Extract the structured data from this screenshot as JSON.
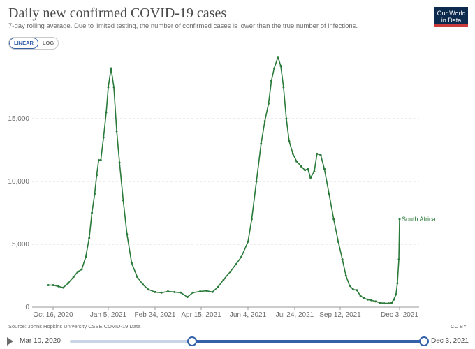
{
  "header": {
    "title": "Daily new confirmed COVID-19 cases",
    "subtitle": "7-day rolling average. Due to limited testing, the number of confirmed cases is lower than the true number of infections.",
    "logo_line1": "Our World",
    "logo_line2": "in Data"
  },
  "toggle": {
    "linear": "LINEAR",
    "log": "LOG",
    "selected": "LINEAR"
  },
  "footer": {
    "source": "Source: Johns Hopkins University CSSE COVID-19 Data",
    "license": "CC BY"
  },
  "timeline": {
    "start_label": "Mar 10, 2020",
    "end_label": "Dec 3, 2021"
  },
  "colors": {
    "series": "#2a7a3a",
    "accent": "#3360a9",
    "grid": "#d9d9d9"
  },
  "chart_data": {
    "type": "line",
    "title": "Daily new confirmed COVID-19 cases",
    "ylim": [
      0,
      20000
    ],
    "yticks": [
      0,
      5000,
      10000,
      15000
    ],
    "ytick_labels": [
      "0",
      "5,000",
      "10,000",
      "15,000"
    ],
    "xlim_days": [
      0,
      422
    ],
    "xticks_days": [
      0,
      81,
      131,
      181,
      231,
      281,
      330,
      412
    ],
    "xtick_labels": [
      "Oct 16, 2020",
      "Jan 5, 2021",
      "Feb 24, 2021",
      "Apr 15, 2021",
      "Jun 4, 2021",
      "Jul 24, 2021",
      "Sep 12, 2021",
      "Dec 3, 2021"
    ],
    "series": [
      {
        "name": "South Africa",
        "points": [
          [
            -7,
            1750
          ],
          [
            0,
            1750
          ],
          [
            8,
            1650
          ],
          [
            15,
            1550
          ],
          [
            22,
            1900
          ],
          [
            30,
            2400
          ],
          [
            36,
            2800
          ],
          [
            42,
            3000
          ],
          [
            48,
            4000
          ],
          [
            53,
            5500
          ],
          [
            57,
            7500
          ],
          [
            61,
            9000
          ],
          [
            64,
            10500
          ],
          [
            67,
            11700
          ],
          [
            70,
            11700
          ],
          [
            74,
            13500
          ],
          [
            78,
            15500
          ],
          [
            81,
            17500
          ],
          [
            84,
            19000
          ],
          [
            87,
            17500
          ],
          [
            90,
            14000
          ],
          [
            93,
            11500
          ],
          [
            97,
            8500
          ],
          [
            101,
            5800
          ],
          [
            106,
            3500
          ],
          [
            112,
            2400
          ],
          [
            118,
            1800
          ],
          [
            124,
            1400
          ],
          [
            131,
            1200
          ],
          [
            138,
            1150
          ],
          [
            145,
            1250
          ],
          [
            152,
            1200
          ],
          [
            159,
            1150
          ],
          [
            166,
            800
          ],
          [
            172,
            1150
          ],
          [
            180,
            1250
          ],
          [
            187,
            1300
          ],
          [
            193,
            1200
          ],
          [
            199,
            1600
          ],
          [
            205,
            2200
          ],
          [
            212,
            2800
          ],
          [
            218,
            3400
          ],
          [
            224,
            4000
          ],
          [
            231,
            5200
          ],
          [
            235,
            7000
          ],
          [
            240,
            10000
          ],
          [
            245,
            13000
          ],
          [
            249,
            14800
          ],
          [
            253,
            16200
          ],
          [
            256,
            18000
          ],
          [
            259,
            19000
          ],
          [
            263,
            19900
          ],
          [
            266,
            19200
          ],
          [
            269,
            17500
          ],
          [
            272,
            15000
          ],
          [
            275,
            13200
          ],
          [
            279,
            12200
          ],
          [
            283,
            11600
          ],
          [
            288,
            11200
          ],
          [
            292,
            10900
          ],
          [
            295,
            11000
          ],
          [
            298,
            10300
          ],
          [
            302,
            10800
          ],
          [
            305,
            12200
          ],
          [
            309,
            12100
          ],
          [
            313,
            11000
          ],
          [
            318,
            9000
          ],
          [
            323,
            7000
          ],
          [
            328,
            5200
          ],
          [
            333,
            3800
          ],
          [
            338,
            2500
          ],
          [
            343,
            1700
          ],
          [
            348,
            1400
          ],
          [
            353,
            1350
          ],
          [
            358,
            900
          ],
          [
            363,
            700
          ],
          [
            368,
            600
          ],
          [
            373,
            550
          ],
          [
            379,
            450
          ],
          [
            385,
            350
          ],
          [
            391,
            300
          ],
          [
            397,
            300
          ],
          [
            401,
            350
          ],
          [
            404,
            600
          ],
          [
            407,
            1000
          ],
          [
            409,
            1900
          ],
          [
            411,
            3800
          ],
          [
            412,
            7000
          ]
        ]
      }
    ]
  }
}
